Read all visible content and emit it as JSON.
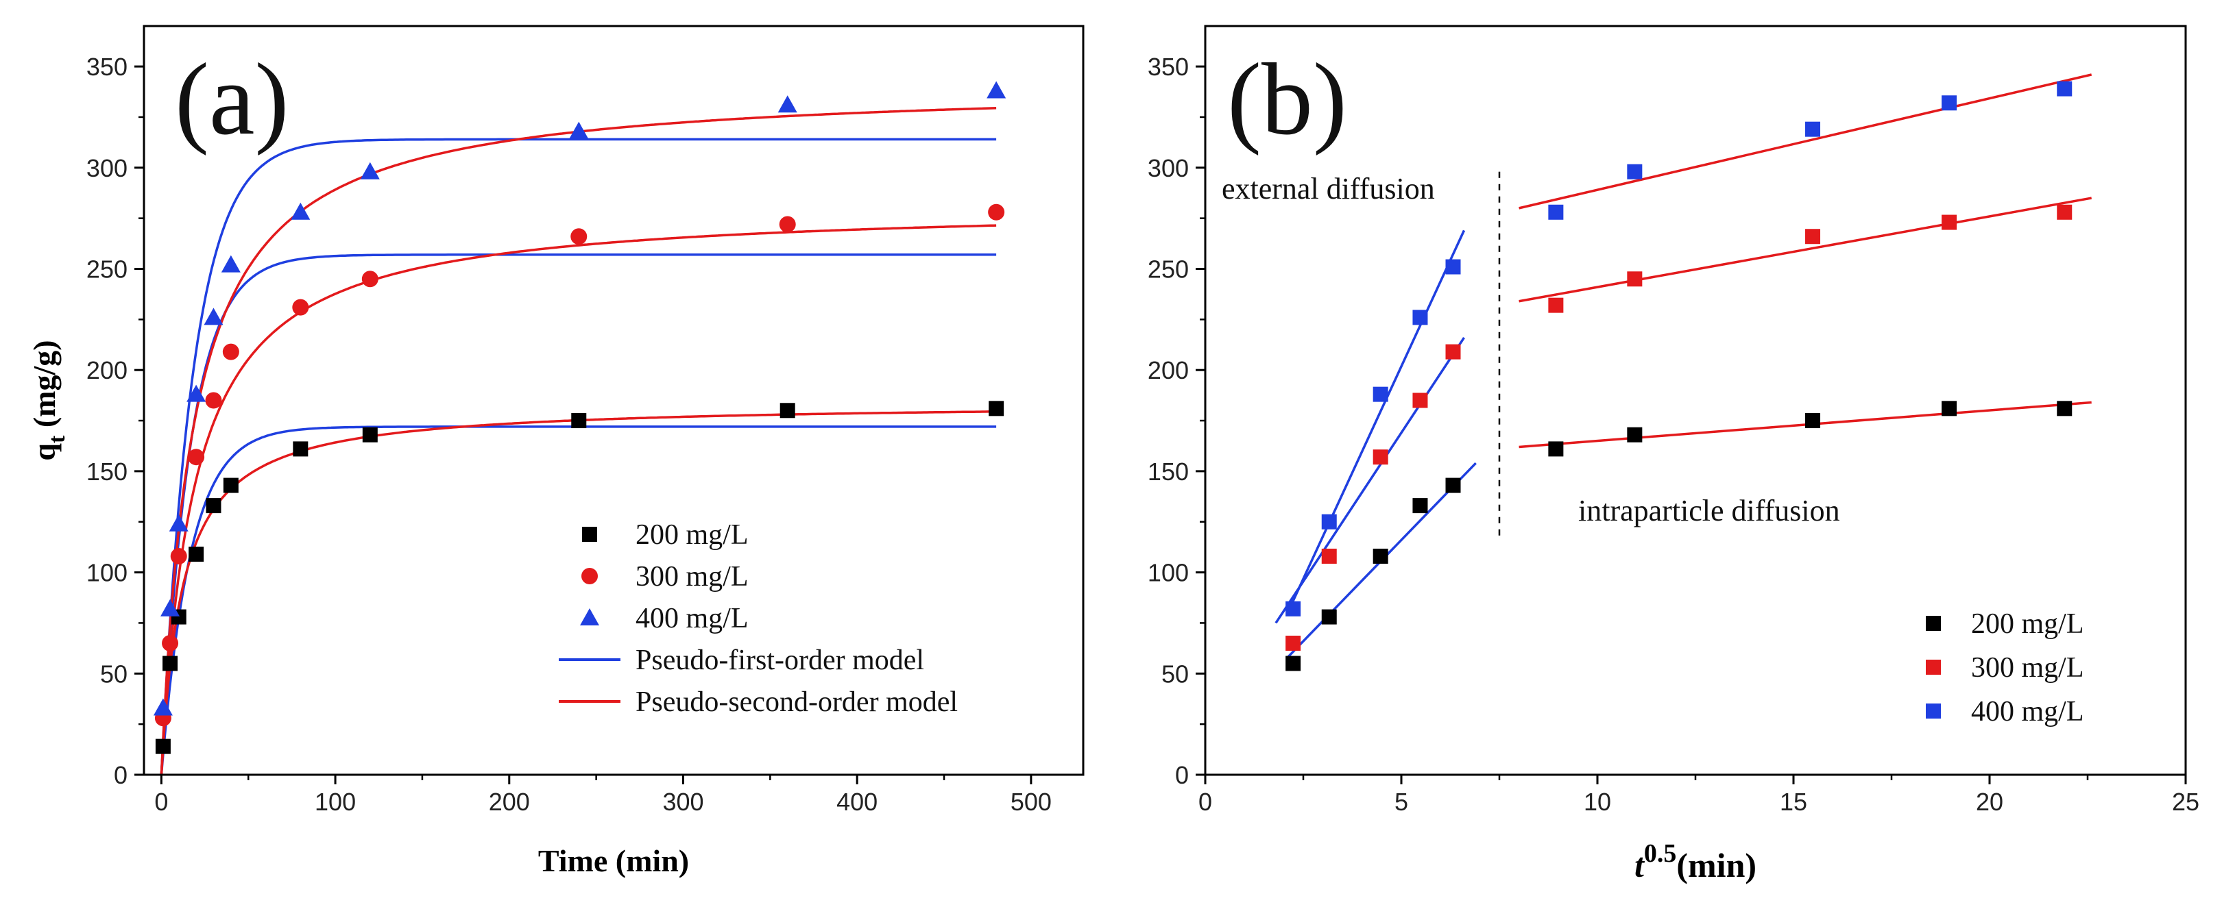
{
  "chart_data": [
    {
      "type": "scatter",
      "panel_label": "(a)",
      "xlabel": "Time (min)",
      "ylabel": "q",
      "ylabel_sub": "t",
      "ylabel_units": " (mg/g)",
      "xlim": [
        -10,
        530
      ],
      "ylim": [
        0,
        370
      ],
      "xticks": [
        0,
        100,
        200,
        300,
        400,
        500
      ],
      "yticks": [
        0,
        50,
        100,
        150,
        200,
        250,
        300,
        350
      ],
      "legend_position": "bottom-right",
      "series": [
        {
          "name": "200 mg/L",
          "marker": "square",
          "color": "#000000",
          "x": [
            1,
            5,
            10,
            20,
            30,
            40,
            80,
            120,
            240,
            360,
            480
          ],
          "y": [
            14,
            55,
            78,
            109,
            133,
            143,
            161,
            168,
            175,
            180,
            181
          ]
        },
        {
          "name": "300 mg/L",
          "marker": "circle",
          "color": "#e31a1c",
          "x": [
            1,
            5,
            10,
            20,
            30,
            40,
            80,
            120,
            240,
            360,
            480
          ],
          "y": [
            28,
            65,
            108,
            157,
            185,
            209,
            231,
            245,
            266,
            272,
            278
          ]
        },
        {
          "name": "400 mg/L",
          "marker": "triangle",
          "color": "#1f3fe0",
          "x": [
            1,
            5,
            10,
            20,
            30,
            40,
            80,
            120,
            240,
            360,
            480
          ],
          "y": [
            33,
            82,
            124,
            188,
            226,
            252,
            278,
            298,
            318,
            331,
            338
          ]
        }
      ],
      "models": [
        {
          "name": "Pseudo-first-order model",
          "type": "pfo",
          "color": "#1f3fe0",
          "params": [
            {
              "qe": 172,
              "k1": 0.06
            },
            {
              "qe": 257,
              "k1": 0.06
            },
            {
              "qe": 314,
              "k1": 0.055
            }
          ]
        },
        {
          "name": "Pseudo-second-order model",
          "type": "pso",
          "color": "#e31a1c",
          "params": [
            {
              "qe": 184,
              "k2": 0.00045
            },
            {
              "qe": 282,
              "k2": 0.00019
            },
            {
              "qe": 342,
              "k2": 0.00016
            }
          ]
        }
      ]
    },
    {
      "type": "scatter",
      "panel_label": "(b)",
      "xlabel_base": "t",
      "xlabel_sup": "0.5",
      "xlabel_units": "(min)",
      "xlim": [
        0,
        25
      ],
      "ylim": [
        0,
        370
      ],
      "xticks": [
        0,
        5,
        10,
        15,
        20,
        25
      ],
      "yticks": [
        0,
        50,
        100,
        150,
        200,
        250,
        300,
        350
      ],
      "legend_position": "bottom-right",
      "annotations": [
        "external diffusion",
        "intraparticle diffusion"
      ],
      "divider_x": 7.5,
      "series": [
        {
          "name": "200 mg/L",
          "marker": "square",
          "color": "#000000",
          "x": [
            2.24,
            3.16,
            4.47,
            5.48,
            6.32,
            8.94,
            10.95,
            15.49,
            18.97,
            21.91
          ],
          "y": [
            55,
            78,
            108,
            133,
            143,
            161,
            168,
            175,
            181,
            181
          ]
        },
        {
          "name": "300 mg/L",
          "marker": "square",
          "color": "#e31a1c",
          "x": [
            2.24,
            3.16,
            4.47,
            5.48,
            6.32,
            8.94,
            10.95,
            15.49,
            18.97,
            21.91
          ],
          "y": [
            65,
            108,
            157,
            185,
            209,
            232,
            245,
            266,
            273,
            278
          ]
        },
        {
          "name": "400 mg/L",
          "marker": "square",
          "color": "#1f3fe0",
          "x": [
            2.24,
            3.16,
            4.47,
            5.48,
            6.32,
            8.94,
            10.95,
            15.49,
            18.97,
            21.91
          ],
          "y": [
            82,
            125,
            188,
            226,
            251,
            278,
            298,
            319,
            332,
            339
          ]
        }
      ],
      "fit_lines": [
        {
          "color": "#1f3fe0",
          "from": [
            2.1,
            58
          ],
          "to": [
            6.9,
            154
          ]
        },
        {
          "color": "#1f3fe0",
          "from": [
            1.8,
            75
          ],
          "to": [
            6.6,
            216
          ]
        },
        {
          "color": "#1f3fe0",
          "from": [
            2.1,
            80
          ],
          "to": [
            6.6,
            269
          ]
        },
        {
          "color": "#e31a1c",
          "from": [
            8.0,
            162
          ],
          "to": [
            22.6,
            184
          ]
        },
        {
          "color": "#e31a1c",
          "from": [
            8.0,
            234
          ],
          "to": [
            22.6,
            285
          ]
        },
        {
          "color": "#e31a1c",
          "from": [
            8.0,
            280
          ],
          "to": [
            22.6,
            346
          ]
        }
      ]
    }
  ]
}
